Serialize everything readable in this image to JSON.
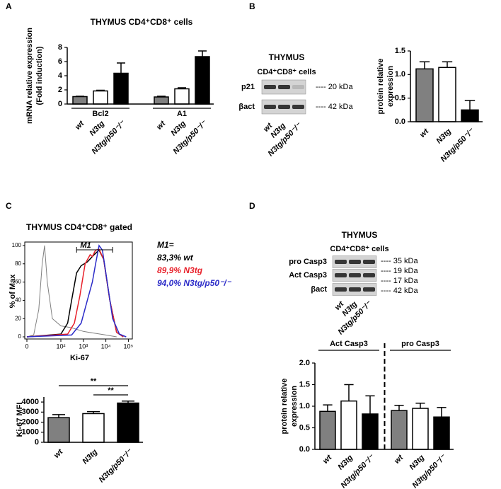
{
  "panel_labels": [
    "A",
    "B",
    "C",
    "D"
  ],
  "blots": [
    {
      "title": "THYMUS",
      "subtitle": "CD4⁺CD8⁺ cells",
      "rows": [
        "p21",
        "βact"
      ],
      "markers": [
        "---- 20 kDa",
        "---- 42 kDa"
      ],
      "lanes": [
        "wt",
        "N3tg",
        "N3tg/p50⁻/⁻"
      ]
    },
    {
      "title": "THYMUS",
      "subtitle": "CD4⁺CD8⁺ cells",
      "rows": [
        "pro Casp3",
        "Act Casp3",
        "βact"
      ],
      "markers": [
        "---- 35 kDa",
        "---- 19 kDa",
        "---- 17 kDa",
        "---- 42 kDa"
      ],
      "lanes": [
        "wt",
        "N3tg",
        "N3tg/p50⁻/⁻"
      ]
    }
  ],
  "chart_data": [
    {
      "type": "bar",
      "title": "THYMUS CD4⁺CD8⁺ cells",
      "ylabel": [
        "mRNA relative expression",
        "(Fold induction)"
      ],
      "categories": [
        "Bcl2",
        "A1"
      ],
      "series": [
        {
          "name": "wt",
          "color": "#808080",
          "values": [
            1.05,
            1.0
          ],
          "errors": [
            0.05,
            0.1
          ]
        },
        {
          "name": "N3tg",
          "color": "#ffffff",
          "values": [
            1.85,
            2.15
          ],
          "errors": [
            0.1,
            0.15
          ]
        },
        {
          "name": "N3tg/p50⁻/⁻",
          "color": "#000000",
          "values": [
            4.35,
            6.7
          ],
          "errors": [
            1.45,
            0.8
          ]
        }
      ],
      "ylim": [
        0,
        8
      ],
      "yticks": [
        0,
        2,
        4,
        6,
        8
      ]
    },
    {
      "type": "bar",
      "ylabel": [
        "protein relative",
        "expression"
      ],
      "categories": [
        "wt",
        "N3tg",
        "N3tg/p50⁻/⁻"
      ],
      "values": [
        1.12,
        1.15,
        0.25
      ],
      "errors": [
        0.15,
        0.12,
        0.2
      ],
      "colors": [
        "#808080",
        "#ffffff",
        "#000000"
      ],
      "ylim": [
        0,
        1.5
      ],
      "yticks": [
        {
          "value": 0,
          "label": "0.0"
        },
        0.5,
        {
          "value": 1,
          "label": "1.0"
        },
        1.5
      ]
    },
    {
      "type": "line",
      "title": "THYMUS CD4⁺CD8⁺ gated",
      "xlabel": "Ki-67",
      "ylabel": "% of Max",
      "xscale": "log",
      "xlim": [
        0,
        150000
      ],
      "xticks": [
        0,
        {
          "value": 100,
          "label": "10²"
        },
        {
          "value": 1000,
          "label": "10³"
        },
        {
          "value": 10000,
          "label": "10⁴"
        },
        {
          "value": 100000,
          "label": "10⁵"
        }
      ],
      "ylim": [
        0,
        100
      ],
      "yticks": [
        0,
        20,
        40,
        60,
        80,
        100
      ],
      "legend_title": "M1=",
      "gate": {
        "label": "M1",
        "range": [
          500,
          20000
        ]
      },
      "series": [
        {
          "color": "#808080",
          "x": [
            0,
            20,
            35,
            45,
            52,
            60,
            75,
            100,
            300,
            1000,
            3000,
            10000,
            30000
          ],
          "values": [
            0,
            2,
            30,
            80,
            100,
            60,
            20,
            12,
            10,
            6,
            4,
            2,
            0
          ]
        },
        {
          "name": "83,3% wt",
          "color": "#000000",
          "x": [
            0,
            100,
            200,
            300,
            500,
            800,
            1500,
            3000,
            5000,
            8000,
            15000,
            30000,
            60000
          ],
          "values": [
            0,
            3,
            15,
            40,
            70,
            78,
            82,
            90,
            95,
            85,
            40,
            5,
            0
          ]
        },
        {
          "name": "89,9% N3tg",
          "color": "#e8202a",
          "x": [
            0,
            200,
            400,
            700,
            1200,
            2000,
            2500,
            3500,
            5000,
            8000,
            15000,
            30000,
            60000
          ],
          "values": [
            0,
            3,
            15,
            45,
            80,
            90,
            88,
            95,
            96,
            85,
            40,
            5,
            0
          ]
        },
        {
          "name": "94,0% N3tg/p50⁻/⁻",
          "color": "#2b2bc8",
          "x": [
            0,
            300,
            800,
            1500,
            2500,
            3500,
            5000,
            7000,
            10000,
            20000,
            40000,
            80000
          ],
          "values": [
            0,
            2,
            15,
            40,
            60,
            80,
            100,
            95,
            70,
            20,
            3,
            0
          ]
        }
      ]
    },
    {
      "type": "bar",
      "ylabel": "Ki-67 MFI",
      "categories": [
        "wt",
        "N3tg",
        "N3tg/p50⁻/⁻"
      ],
      "values": [
        2450,
        2850,
        3900
      ],
      "errors": [
        300,
        200,
        200
      ],
      "colors": [
        "#808080",
        "#ffffff",
        "#000000"
      ],
      "ylim": [
        0,
        4500
      ],
      "yticks": [
        0,
        1000,
        2000,
        3000,
        4000
      ],
      "significance": [
        {
          "from": "wt",
          "to": "N3tg/p50⁻/⁻",
          "label": "**"
        },
        {
          "from": "N3tg",
          "to": "N3tg/p50⁻/⁻",
          "label": "**"
        }
      ]
    },
    {
      "type": "bar",
      "ylabel": [
        "protein relative",
        "expression"
      ],
      "categories": [
        "Act Casp3",
        "pro Casp3"
      ],
      "group_divider": true,
      "series": [
        {
          "name": "wt",
          "color": "#808080",
          "values": [
            0.88,
            0.9
          ],
          "errors": [
            0.15,
            0.12
          ]
        },
        {
          "name": "N3tg",
          "color": "#ffffff",
          "values": [
            1.12,
            0.95
          ],
          "errors": [
            0.38,
            0.12
          ]
        },
        {
          "name": "N3tg/p50⁻/⁻",
          "color": "#000000",
          "values": [
            0.82,
            0.75
          ],
          "errors": [
            0.42,
            0.22
          ]
        }
      ],
      "ylim": [
        0,
        2
      ],
      "yticks": [
        {
          "value": 0,
          "label": "0.0"
        },
        0.5,
        {
          "value": 1,
          "label": "1.0"
        },
        1.5,
        {
          "value": 2,
          "label": "2.0"
        }
      ]
    }
  ]
}
